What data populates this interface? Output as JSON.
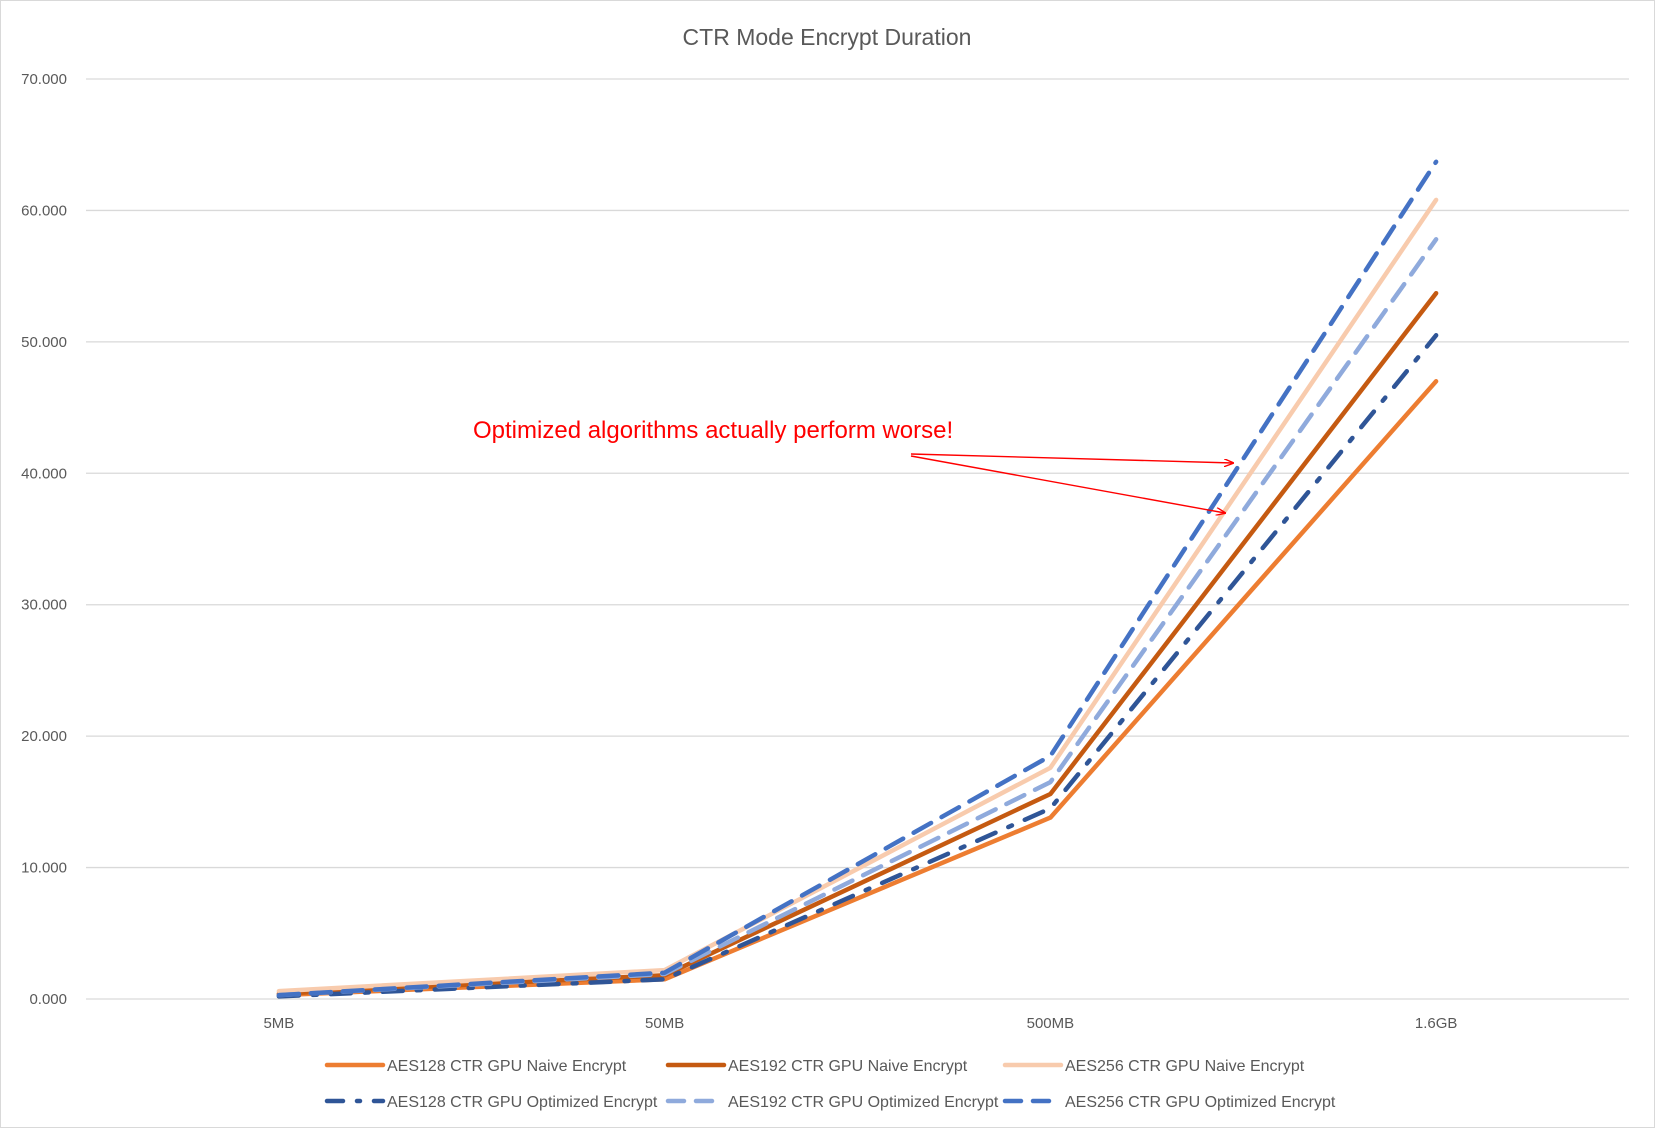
{
  "chart_data": {
    "type": "line",
    "title": "CTR Mode Encrypt Duration",
    "xlabel": "",
    "ylabel": "",
    "categories": [
      "5MB",
      "50MB",
      "500MB",
      "1.6GB"
    ],
    "ylim": [
      0,
      70
    ],
    "yticks": [
      "0.000",
      "10.000",
      "20.000",
      "30.000",
      "40.000",
      "50.000",
      "60.000",
      "70.000"
    ],
    "grid": true,
    "legend_position": "bottom",
    "series": [
      {
        "name": "AES128 CTR GPU Naive Encrypt",
        "values": [
          0.3,
          1.5,
          13.8,
          47.0
        ],
        "color": "#ed7d31",
        "dash": "solid"
      },
      {
        "name": "AES192 CTR GPU Naive Encrypt",
        "values": [
          0.4,
          1.8,
          15.6,
          53.7
        ],
        "color": "#c55a11",
        "dash": "solid"
      },
      {
        "name": "AES256 CTR GPU Naive Encrypt",
        "values": [
          0.6,
          2.2,
          17.6,
          60.8
        ],
        "color": "#f8cbad",
        "dash": "solid"
      },
      {
        "name": "AES128 CTR GPU Optimized Encrypt",
        "values": [
          0.2,
          1.5,
          14.5,
          50.5
        ],
        "color": "#2f5597",
        "dash": "dashdot"
      },
      {
        "name": "AES192 CTR GPU Optimized Encrypt",
        "values": [
          0.3,
          1.9,
          16.5,
          57.8
        ],
        "color": "#8faadc",
        "dash": "dash"
      },
      {
        "name": "AES256 CTR GPU Optimized Encrypt",
        "values": [
          0.3,
          2.0,
          18.5,
          63.7
        ],
        "color": "#4472c4",
        "dash": "dash"
      }
    ],
    "annotation": {
      "text": "Optimized algorithms actually perform worse!",
      "color": "#ff0000"
    }
  }
}
